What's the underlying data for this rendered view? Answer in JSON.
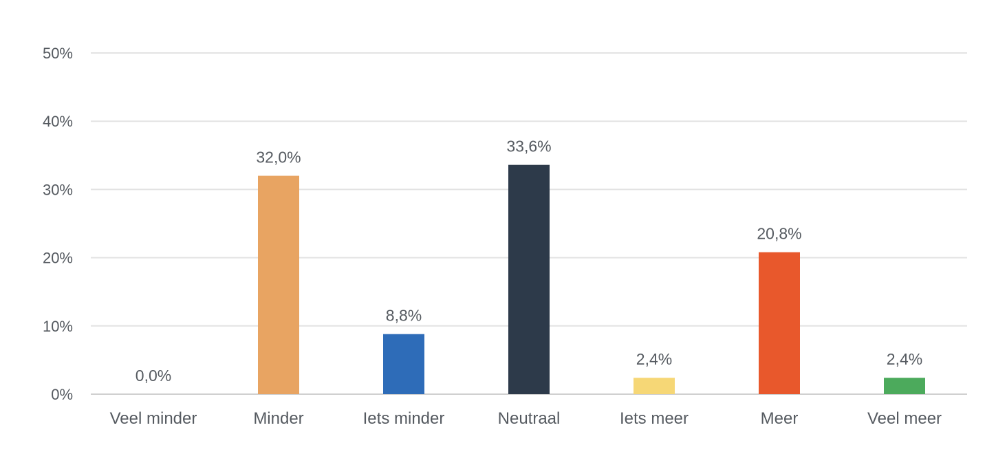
{
  "chart_data": {
    "type": "bar",
    "categories": [
      "Veel minder",
      "Minder",
      "Iets minder",
      "Neutraal",
      "Iets meer",
      "Meer",
      "Veel meer"
    ],
    "values": [
      0.0,
      32.0,
      8.8,
      33.6,
      2.4,
      20.8,
      2.4
    ],
    "data_labels": [
      "0,0%",
      "32,0%",
      "8,8%",
      "33,6%",
      "2,4%",
      "20,8%",
      "2,4%"
    ],
    "colors": [
      "#cccccc",
      "#e8a462",
      "#2e6cb8",
      "#2d3a4a",
      "#f6d776",
      "#e8582c",
      "#4caa5c"
    ],
    "yticks": [
      0,
      10,
      20,
      30,
      40,
      50
    ],
    "ytick_labels": [
      "0%",
      "10%",
      "20%",
      "30%",
      "40%",
      "50%"
    ],
    "ylim": [
      0,
      50
    ],
    "grid": true,
    "title": "",
    "xlabel": "",
    "ylabel": ""
  }
}
